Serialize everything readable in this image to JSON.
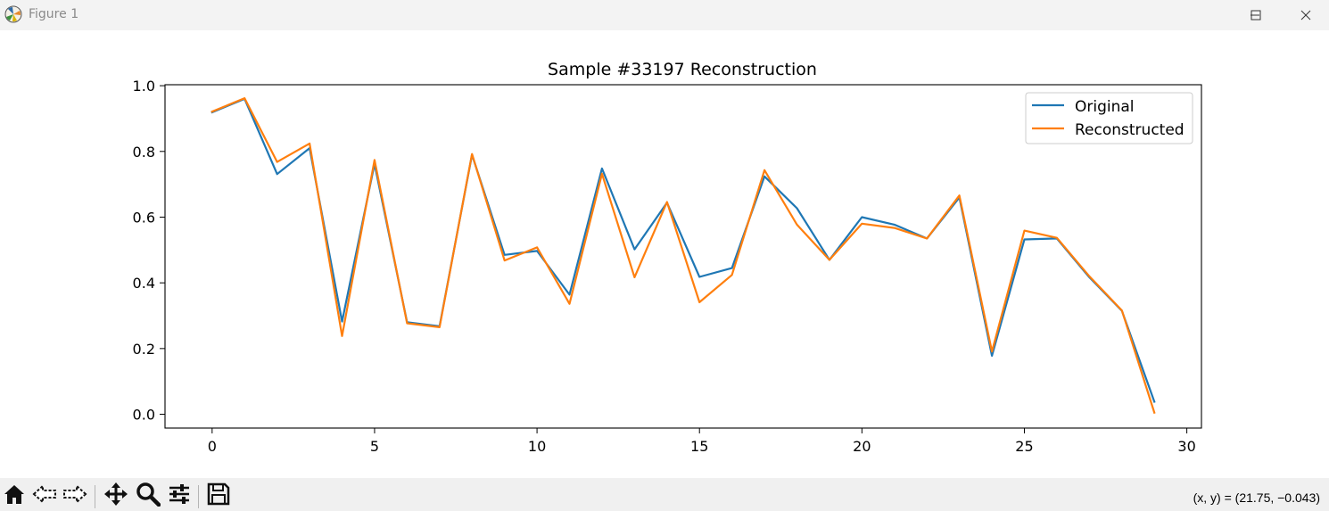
{
  "window": {
    "title": "Figure 1",
    "icon": "matplotlib-logo-icon",
    "controls": [
      "minimize-icon",
      "maximize-icon",
      "close-icon"
    ]
  },
  "toolbar": {
    "tools": [
      "home-icon",
      "back-icon",
      "forward-icon",
      "pan-icon",
      "zoom-icon",
      "configure-subplots-icon",
      "save-icon"
    ],
    "coords": "(x, y) = (21.75, −0.043)"
  },
  "chart_data": {
    "type": "line",
    "title": "Sample #33197 Reconstruction",
    "xlabel": "",
    "ylabel": "",
    "xlim": [
      -1.45,
      30.45
    ],
    "ylim": [
      -0.042,
      1.003
    ],
    "xticks": [
      0,
      5,
      10,
      15,
      20,
      25,
      30
    ],
    "yticks": [
      0.0,
      0.2,
      0.4,
      0.6,
      0.8,
      1.0
    ],
    "ytick_labels": [
      "0.0",
      "0.2",
      "0.4",
      "0.6",
      "0.8",
      "1.0"
    ],
    "grid": false,
    "legend": "top-right",
    "x": [
      0,
      1,
      2,
      3,
      4,
      5,
      6,
      7,
      8,
      9,
      10,
      11,
      12,
      13,
      14,
      15,
      16,
      17,
      18,
      19,
      20,
      21,
      22,
      23,
      24,
      25,
      26,
      27,
      28,
      29
    ],
    "series": [
      {
        "name": "Original",
        "color": "#1f77b4",
        "values": [
          0.919,
          0.96,
          0.731,
          0.81,
          0.282,
          0.762,
          0.28,
          0.268,
          0.79,
          0.485,
          0.497,
          0.364,
          0.748,
          0.502,
          0.644,
          0.418,
          0.445,
          0.724,
          0.627,
          0.47,
          0.6,
          0.577,
          0.535,
          0.66,
          0.178,
          0.532,
          0.535,
          0.417,
          0.315,
          0.038
        ]
      },
      {
        "name": "Reconstructed",
        "color": "#ff7f0e",
        "values": [
          0.921,
          0.962,
          0.768,
          0.824,
          0.238,
          0.774,
          0.277,
          0.265,
          0.792,
          0.468,
          0.508,
          0.336,
          0.732,
          0.417,
          0.646,
          0.341,
          0.424,
          0.743,
          0.577,
          0.47,
          0.58,
          0.567,
          0.535,
          0.666,
          0.191,
          0.559,
          0.537,
          0.42,
          0.316,
          0.005
        ]
      }
    ]
  }
}
